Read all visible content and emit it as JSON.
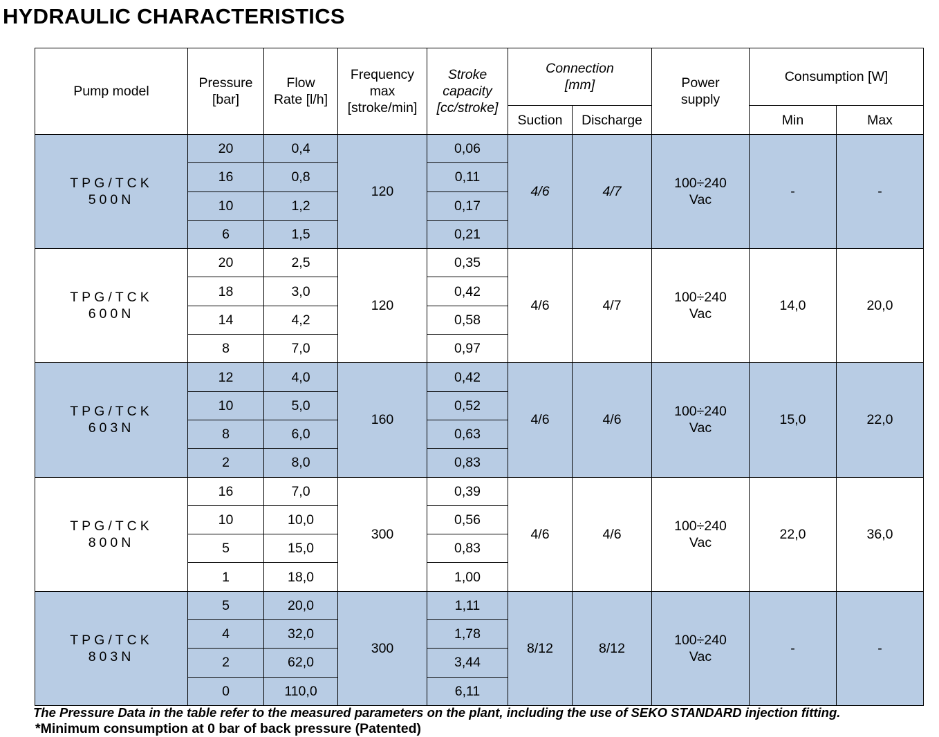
{
  "title": "HYDRAULIC CHARACTERISTICS",
  "headers": {
    "pump_model": "Pump model",
    "pressure_l1": "Pressure",
    "pressure_l2": "[bar]",
    "flow_l1": "Flow",
    "flow_l2": "Rate [l/h]",
    "freq_l1": "Frequency",
    "freq_l2": "max",
    "freq_l3": "[stroke/min]",
    "stroke_l1": "Stroke",
    "stroke_l2": "capacity",
    "stroke_l3": "[cc/stroke]",
    "connection_l1": "Connection",
    "connection_l2": "[mm]",
    "suction": "Suction",
    "discharge": "Discharge",
    "power_l1": "Power",
    "power_l2": "supply",
    "consumption": "Consumption [W]",
    "min": "Min",
    "max": "Max"
  },
  "pumps": [
    {
      "model_l1": "TPG/TCK",
      "model_l2": "500N",
      "frequency": "120",
      "suction": "4/6",
      "discharge": "4/7",
      "power_l1": "100÷240",
      "power_l2": "Vac",
      "cons_min": "-",
      "cons_max": "-",
      "rows": [
        {
          "pressure": "20",
          "flow": "0,4",
          "stroke": "0,06"
        },
        {
          "pressure": "16",
          "flow": "0,8",
          "stroke": "0,11"
        },
        {
          "pressure": "10",
          "flow": "1,2",
          "stroke": "0,17"
        },
        {
          "pressure": "6",
          "flow": "1,5",
          "stroke": "0,21"
        }
      ]
    },
    {
      "model_l1": "TPG/TCK",
      "model_l2": "600N",
      "frequency": "120",
      "suction": "4/6",
      "discharge": "4/7",
      "power_l1": "100÷240",
      "power_l2": "Vac",
      "cons_min": "14,0",
      "cons_max": "20,0",
      "rows": [
        {
          "pressure": "20",
          "flow": "2,5",
          "stroke": "0,35"
        },
        {
          "pressure": "18",
          "flow": "3,0",
          "stroke": "0,42"
        },
        {
          "pressure": "14",
          "flow": "4,2",
          "stroke": "0,58"
        },
        {
          "pressure": "8",
          "flow": "7,0",
          "stroke": "0,97"
        }
      ]
    },
    {
      "model_l1": "TPG/TCK",
      "model_l2": "603N",
      "frequency": "160",
      "suction": "4/6",
      "discharge": "4/6",
      "power_l1": "100÷240",
      "power_l2": "Vac",
      "cons_min": "15,0",
      "cons_max": "22,0",
      "rows": [
        {
          "pressure": "12",
          "flow": "4,0",
          "stroke": "0,42"
        },
        {
          "pressure": "10",
          "flow": "5,0",
          "stroke": "0,52"
        },
        {
          "pressure": "8",
          "flow": "6,0",
          "stroke": "0,63"
        },
        {
          "pressure": "2",
          "flow": "8,0",
          "stroke": "0,83"
        }
      ]
    },
    {
      "model_l1": "TPG/TCK",
      "model_l2": "800N",
      "frequency": "300",
      "suction": "4/6",
      "discharge": "4/6",
      "power_l1": "100÷240",
      "power_l2": "Vac",
      "cons_min": "22,0",
      "cons_max": "36,0",
      "rows": [
        {
          "pressure": "16",
          "flow": "7,0",
          "stroke": "0,39"
        },
        {
          "pressure": "10",
          "flow": "10,0",
          "stroke": "0,56"
        },
        {
          "pressure": "5",
          "flow": "15,0",
          "stroke": "0,83"
        },
        {
          "pressure": "1",
          "flow": "18,0",
          "stroke": "1,00"
        }
      ]
    },
    {
      "model_l1": "TPG/TCK",
      "model_l2": "803N",
      "frequency": "300",
      "suction": "8/12",
      "discharge": "8/12",
      "power_l1": "100÷240",
      "power_l2": "Vac",
      "cons_min": "-",
      "cons_max": "-",
      "rows": [
        {
          "pressure": "5",
          "flow": "20,0",
          "stroke": "1,11"
        },
        {
          "pressure": "4",
          "flow": "32,0",
          "stroke": "1,78"
        },
        {
          "pressure": "2",
          "flow": "62,0",
          "stroke": "3,44"
        },
        {
          "pressure": "0",
          "flow": "110,0",
          "stroke": "6,11"
        }
      ]
    }
  ],
  "note_pressure": "The Pressure Data in the table refer to the measured parameters on the plant, including the use of SEKO STANDARD injection fitting.",
  "note_consumption": "*Minimum consumption at 0 bar of back pressure (Patented)",
  "colors": {
    "band_blue": "#b8cce4",
    "band_white": "#ffffff",
    "border": "#000000"
  }
}
